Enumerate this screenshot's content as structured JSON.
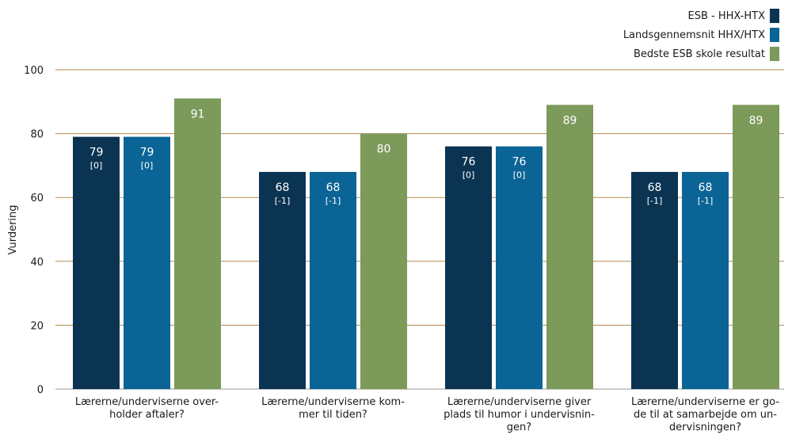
{
  "chart_data": {
    "type": "bar",
    "ylabel": "Vurdering",
    "ylim": [
      0,
      100
    ],
    "yticks": [
      0,
      20,
      40,
      60,
      80,
      100
    ],
    "grid": true,
    "legend_position": "top-right",
    "categories": [
      [
        "Lærerne/underviserne over-",
        "holder aftaler?"
      ],
      [
        "Lærerne/underviserne kom-",
        "mer til tiden?"
      ],
      [
        "Lærerne/underviserne giver",
        "plads til humor i undervisnin-",
        "gen?"
      ],
      [
        "Lærerne/underviserne er go-",
        "de til at samarbejde om un-",
        "dervisningen?"
      ]
    ],
    "series": [
      {
        "name": "ESB - HHX-HTX",
        "color": "#0b3453",
        "values": [
          79,
          68,
          76,
          68
        ],
        "labels": [
          "79",
          "68",
          "76",
          "68"
        ],
        "sublabels": [
          "[0]",
          "[-1]",
          "[0]",
          "[-1]"
        ]
      },
      {
        "name": "Landsgennemsnit HHX/HTX",
        "color": "#0b6496",
        "values": [
          79,
          68,
          76,
          68
        ],
        "labels": [
          "79",
          "68",
          "76",
          "68"
        ],
        "sublabels": [
          "[0]",
          "[-1]",
          "[0]",
          "[-1]"
        ]
      },
      {
        "name": "Bedste ESB skole resultat",
        "color": "#7c9a5a",
        "values": [
          91,
          80,
          89,
          89
        ],
        "labels": [
          "91",
          "80",
          "89",
          "89"
        ],
        "sublabels": []
      }
    ]
  }
}
